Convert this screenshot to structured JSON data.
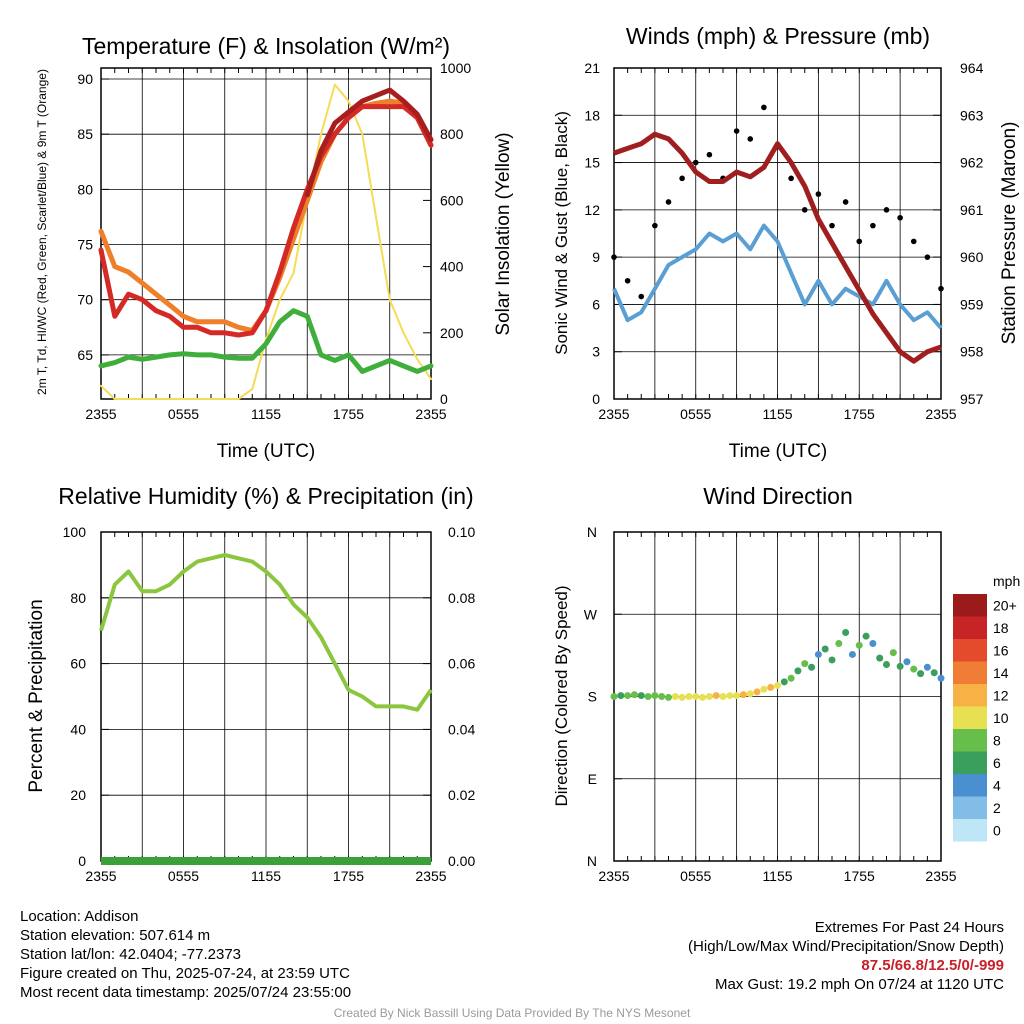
{
  "colors": {
    "red": "#d42a26",
    "green": "#3fae3b",
    "scarlet": "#a81e1e",
    "orange": "#f07f2a",
    "yellow": "#f5dc55",
    "blue": "#5a9fd4",
    "black": "#000000",
    "maroon": "#a01e1e",
    "rh": "#8cc63f",
    "precip": "#3aa13a"
  },
  "chart_data": [
    {
      "id": "temp",
      "type": "line",
      "title": "Temperature (F) & Insolation (W/m²)",
      "xlabel": "Time (UTC)",
      "ylabel": "2m T, Td, HI/WC (Red, Green, Scarlet/Blue) & 9m T (Orange)",
      "y2label": "Solar Insolation (Yellow)",
      "x_ticks": [
        "2355",
        "0555",
        "1155",
        "1755",
        "2355"
      ],
      "ylim": [
        61,
        91
      ],
      "y_ticks": [
        65,
        70,
        75,
        80,
        85,
        90
      ],
      "y2lim": [
        0,
        1000
      ],
      "y2_ticks": [
        0,
        200,
        400,
        600,
        800,
        1000
      ],
      "x_hours": [
        0,
        1,
        2,
        3,
        4,
        5,
        6,
        7,
        8,
        9,
        10,
        11,
        12,
        13,
        14,
        15,
        16,
        17,
        18,
        19,
        20,
        21,
        22,
        23,
        24
      ],
      "series": [
        {
          "name": "Orange",
          "color": "orange",
          "axis": "y",
          "values": [
            76.2,
            73.0,
            72.5,
            71.5,
            70.5,
            69.5,
            68.5,
            68.0,
            68.0,
            68.0,
            67.5,
            67.2,
            69.0,
            72.0,
            75.5,
            79.0,
            82.5,
            85.0,
            86.5,
            87.5,
            87.8,
            88.0,
            87.8,
            86.5,
            84.0
          ]
        },
        {
          "name": "Red",
          "color": "red",
          "axis": "y",
          "values": [
            74.5,
            68.5,
            70.5,
            70.0,
            69.0,
            68.5,
            67.5,
            67.5,
            67.0,
            67.0,
            66.8,
            67.0,
            69.0,
            72.5,
            76.5,
            80.0,
            83.0,
            85.0,
            86.5,
            87.5,
            87.5,
            87.5,
            87.5,
            86.5,
            84.0
          ]
        },
        {
          "name": "Scarlet",
          "color": "scarlet",
          "axis": "y",
          "values": [
            null,
            null,
            null,
            null,
            null,
            null,
            null,
            null,
            null,
            null,
            null,
            null,
            null,
            null,
            null,
            79.5,
            83.5,
            86.0,
            87.0,
            88.0,
            88.5,
            89.0,
            88.0,
            86.8,
            84.5
          ]
        },
        {
          "name": "Green",
          "color": "green",
          "axis": "y",
          "values": [
            64.0,
            64.3,
            64.8,
            64.6,
            64.8,
            65.0,
            65.1,
            65.0,
            65.0,
            64.8,
            64.7,
            64.7,
            66.0,
            68.0,
            69.0,
            68.5,
            65.0,
            64.5,
            65.0,
            63.5,
            64.0,
            64.5,
            64.0,
            63.5,
            64.0
          ]
        },
        {
          "name": "Yellow",
          "color": "yellow",
          "axis": "y2",
          "values": [
            40,
            0,
            0,
            0,
            0,
            0,
            0,
            0,
            0,
            0,
            0,
            30,
            180,
            300,
            380,
            600,
            800,
            950,
            900,
            800,
            550,
            300,
            200,
            120,
            60
          ]
        }
      ]
    },
    {
      "id": "wind",
      "type": "line",
      "title": "Winds (mph) & Pressure (mb)",
      "xlabel": "Time (UTC)",
      "ylabel": "Sonic Wind & Gust (Blue, Black)",
      "y2label": "Station Pressure (Maroon)",
      "x_ticks": [
        "2355",
        "0555",
        "1155",
        "1755",
        "2355"
      ],
      "ylim": [
        0,
        21
      ],
      "y_ticks": [
        0,
        3,
        6,
        9,
        12,
        15,
        18,
        21
      ],
      "y2lim": [
        957,
        964
      ],
      "y2_ticks": [
        957,
        958,
        959,
        960,
        961,
        962,
        963,
        964
      ],
      "x_hours": [
        0,
        1,
        2,
        3,
        4,
        5,
        6,
        7,
        8,
        9,
        10,
        11,
        12,
        13,
        14,
        15,
        16,
        17,
        18,
        19,
        20,
        21,
        22,
        23,
        24
      ],
      "series": [
        {
          "name": "Blue",
          "color": "blue",
          "axis": "y",
          "values": [
            7.0,
            5.0,
            5.5,
            7.0,
            8.5,
            9.0,
            9.5,
            10.5,
            10.0,
            10.5,
            9.5,
            11.0,
            10.0,
            8.0,
            6.0,
            7.5,
            6.0,
            7.0,
            6.5,
            6.0,
            7.5,
            6.0,
            5.0,
            5.5,
            4.5
          ]
        },
        {
          "name": "Black",
          "color": "black",
          "axis": "y",
          "kind": "points",
          "values": [
            9.0,
            7.5,
            6.5,
            11.0,
            12.5,
            14.0,
            15.0,
            15.5,
            14.0,
            17.0,
            16.5,
            18.5,
            16.0,
            14.0,
            12.0,
            13.0,
            11.0,
            12.5,
            10.0,
            11.0,
            12.0,
            11.5,
            10.0,
            9.0,
            7.0
          ]
        },
        {
          "name": "Maroon",
          "color": "maroon",
          "axis": "y2",
          "values": [
            962.2,
            962.3,
            962.4,
            962.6,
            962.5,
            962.2,
            961.8,
            961.6,
            961.6,
            961.8,
            961.7,
            961.9,
            962.4,
            962.0,
            961.5,
            960.8,
            960.3,
            959.8,
            959.3,
            958.8,
            958.4,
            958.0,
            957.8,
            958.0,
            958.1
          ]
        }
      ]
    },
    {
      "id": "rh",
      "type": "line",
      "title": "Relative Humidity (%) & Precipitation (in)",
      "xlabel": "",
      "ylabel": "Percent & Precipitation",
      "x_ticks": [
        "2355",
        "0555",
        "1155",
        "1755",
        "2355"
      ],
      "ylim": [
        0,
        100
      ],
      "y_ticks": [
        0,
        20,
        40,
        60,
        80,
        100
      ],
      "y2lim": [
        0,
        0.1
      ],
      "y2_ticks": [
        "0.00",
        "0.02",
        "0.04",
        "0.06",
        "0.08",
        "0.10"
      ],
      "x_hours": [
        0,
        1,
        2,
        3,
        4,
        5,
        6,
        7,
        8,
        9,
        10,
        11,
        12,
        13,
        14,
        15,
        16,
        17,
        18,
        19,
        20,
        21,
        22,
        23,
        24
      ],
      "series": [
        {
          "name": "RH",
          "color": "rh",
          "axis": "y",
          "values": [
            70,
            84,
            88,
            82,
            82,
            84,
            88,
            91,
            92,
            93,
            92,
            91,
            88,
            84,
            78,
            74,
            68,
            60,
            52,
            50,
            47,
            47,
            47,
            46,
            52
          ]
        },
        {
          "name": "Precip",
          "color": "precip",
          "axis": "y2",
          "values": [
            0,
            0,
            0,
            0,
            0,
            0,
            0,
            0,
            0,
            0,
            0,
            0,
            0,
            0,
            0,
            0,
            0,
            0,
            0,
            0,
            0,
            0,
            0,
            0,
            0
          ]
        }
      ]
    },
    {
      "id": "dir",
      "type": "scatter",
      "title": "Wind Direction",
      "xlabel": "",
      "ylabel": "Direction (Colored By Speed)",
      "x_ticks": [
        "2355",
        "0555",
        "1155",
        "1755",
        "2355"
      ],
      "y_ticks": [
        "N",
        "E",
        "S",
        "W",
        "N"
      ],
      "ylim_deg": [
        0,
        360
      ],
      "legend_title": "mph",
      "legend_labels": [
        "0",
        "2",
        "4",
        "6",
        "8",
        "10",
        "12",
        "14",
        "16",
        "18",
        "20+"
      ],
      "legend_colors": [
        "#bfe6f7",
        "#82bde8",
        "#4a8fcf",
        "#3a9e5c",
        "#67be4a",
        "#e8e053",
        "#f7b145",
        "#f07d35",
        "#e34b2c",
        "#c72525",
        "#9b1a1a"
      ],
      "points": [
        [
          0.0,
          180,
          7
        ],
        [
          0.5,
          181,
          6
        ],
        [
          1.0,
          181,
          8
        ],
        [
          1.5,
          182,
          7
        ],
        [
          2.0,
          181,
          6
        ],
        [
          2.5,
          180,
          8
        ],
        [
          3.0,
          181,
          7
        ],
        [
          3.5,
          180,
          8
        ],
        [
          4.0,
          179,
          8
        ],
        [
          4.5,
          180,
          9
        ],
        [
          5.0,
          179,
          10
        ],
        [
          5.5,
          180,
          9
        ],
        [
          6.0,
          180,
          10
        ],
        [
          6.5,
          179,
          10
        ],
        [
          7.0,
          180,
          10
        ],
        [
          7.5,
          181,
          11
        ],
        [
          8.0,
          180,
          10
        ],
        [
          8.5,
          181,
          9
        ],
        [
          9.0,
          181,
          10
        ],
        [
          9.5,
          182,
          12
        ],
        [
          10.0,
          183,
          10
        ],
        [
          10.5,
          185,
          11
        ],
        [
          11.0,
          188,
          10
        ],
        [
          11.5,
          190,
          12
        ],
        [
          12.0,
          192,
          9
        ],
        [
          12.5,
          196,
          6
        ],
        [
          13.0,
          200,
          8
        ],
        [
          13.5,
          208,
          5
        ],
        [
          14.0,
          216,
          7
        ],
        [
          14.5,
          212,
          6
        ],
        [
          15.0,
          226,
          4
        ],
        [
          15.5,
          232,
          6
        ],
        [
          16.0,
          220,
          5
        ],
        [
          16.5,
          238,
          7
        ],
        [
          17.0,
          250,
          6
        ],
        [
          17.5,
          226,
          4
        ],
        [
          18.0,
          236,
          8
        ],
        [
          18.5,
          246,
          5
        ],
        [
          19.0,
          238,
          3
        ],
        [
          19.5,
          222,
          6
        ],
        [
          20.0,
          215,
          5
        ],
        [
          20.5,
          228,
          7
        ],
        [
          21.0,
          213,
          6
        ],
        [
          21.5,
          218,
          4
        ],
        [
          22.0,
          210,
          8
        ],
        [
          22.5,
          205,
          5
        ],
        [
          23.0,
          212,
          4
        ],
        [
          23.5,
          206,
          5
        ],
        [
          24.0,
          200,
          4
        ]
      ]
    }
  ],
  "footer": {
    "location": "Location: Addison",
    "elevation": "Station elevation: 507.614 m",
    "latlon": "Station lat/lon: 42.0404; -77.2373",
    "created": "Figure created on Thu, 2025-07-24, at 23:59 UTC",
    "recent": "Most recent data timestamp: 2025/07/24 23:55:00",
    "extremes_title": "Extremes For Past 24 Hours",
    "extremes_fields": "(High/Low/Max Wind/Precipitation/Snow Depth)",
    "extremes_values": "87.5/66.8/12.5/0/-999",
    "max_gust": "Max Gust: 19.2 mph On 07/24 at 1120 UTC",
    "credit": "Created By Nick Bassill Using Data Provided By The NYS Mesonet"
  }
}
